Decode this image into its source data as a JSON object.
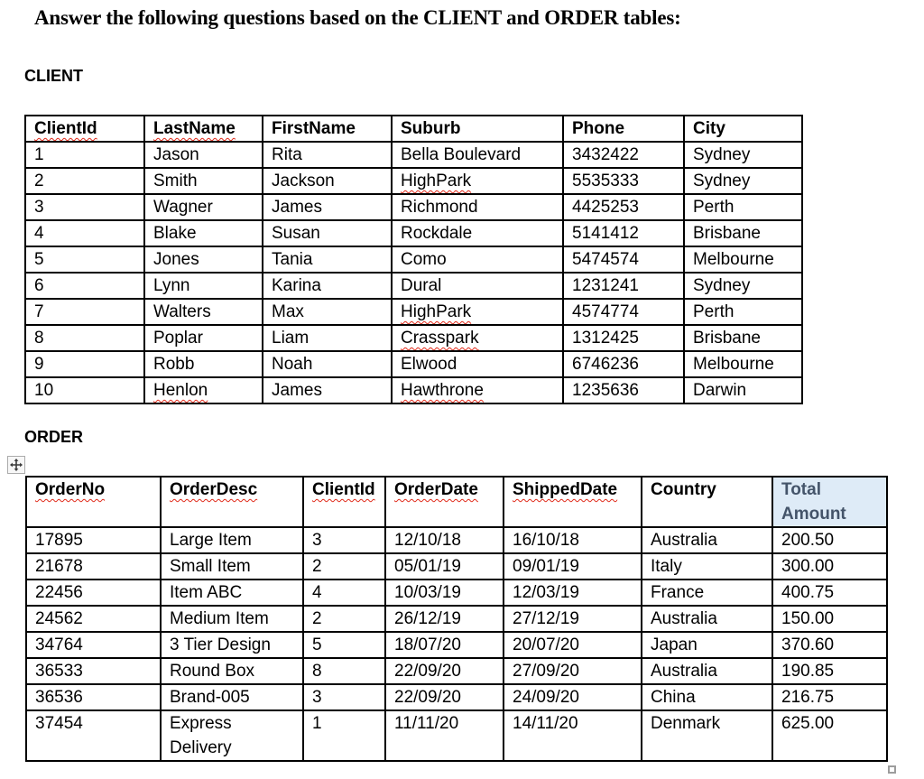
{
  "title": "Answer the following questions based on the CLIENT and ORDER tables:",
  "client_table": {
    "label": "CLIENT",
    "headers": [
      "ClientId",
      "LastName",
      "FirstName",
      "Suburb",
      "Phone",
      "City"
    ],
    "header_misspelled": [
      true,
      true,
      false,
      false,
      false,
      false
    ],
    "rows": [
      [
        "1",
        "Jason",
        "Rita",
        "Bella Boulevard",
        "3432422",
        "Sydney"
      ],
      [
        "2",
        "Smith",
        "Jackson",
        "HighPark",
        "5535333",
        "Sydney"
      ],
      [
        "3",
        "Wagner",
        "James",
        "Richmond",
        "4425253",
        "Perth"
      ],
      [
        "4",
        "Blake",
        "Susan",
        "Rockdale",
        "5141412",
        "Brisbane"
      ],
      [
        "5",
        "Jones",
        "Tania",
        "Como",
        "5474574",
        "Melbourne"
      ],
      [
        "6",
        "Lynn",
        "Karina",
        "Dural",
        "1231241",
        "Sydney"
      ],
      [
        "7",
        "Walters",
        "Max",
        "HighPark",
        "4574774",
        "Perth"
      ],
      [
        "8",
        "Poplar",
        "Liam",
        "Crasspark",
        "1312425",
        "Brisbane"
      ],
      [
        "9",
        "Robb",
        "Noah",
        "Elwood",
        "6746236",
        "Melbourne"
      ],
      [
        "10",
        "Henlon",
        "James",
        "Hawthrone",
        "1235636",
        "Darwin"
      ]
    ],
    "misspelled_cells": [
      [
        1,
        3
      ],
      [
        6,
        3
      ],
      [
        7,
        3
      ],
      [
        9,
        1
      ],
      [
        9,
        3
      ]
    ]
  },
  "order_table": {
    "label": "ORDER",
    "headers": [
      "OrderNo",
      "OrderDesc",
      "ClientId",
      "OrderDate",
      "ShippedDate",
      "Country",
      "Total Amount"
    ],
    "header_misspelled": [
      true,
      true,
      true,
      true,
      true,
      false,
      false
    ],
    "highlighted_header_index": 6,
    "rows": [
      [
        "17895",
        "Large Item",
        "3",
        "12/10/18",
        "16/10/18",
        "Australia",
        "200.50"
      ],
      [
        "21678",
        "Small Item",
        "2",
        "05/01/19",
        "09/01/19",
        "Italy",
        "300.00"
      ],
      [
        "22456",
        "Item ABC",
        "4",
        "10/03/19",
        "12/03/19",
        "France",
        "400.75"
      ],
      [
        "24562",
        "Medium Item",
        "2",
        "26/12/19",
        "27/12/19",
        "Australia",
        "150.00"
      ],
      [
        "34764",
        "3 Tier Design",
        "5",
        "18/07/20",
        "20/07/20",
        "Japan",
        "370.60"
      ],
      [
        "36533",
        "Round Box",
        "8",
        "22/09/20",
        "27/09/20",
        "Australia",
        "190.85"
      ],
      [
        "36536",
        "Brand-005",
        "3",
        "22/09/20",
        "24/09/20",
        "China",
        "216.75"
      ],
      [
        "37454",
        "Express\nDelivery",
        "1",
        "11/11/20",
        "14/11/20",
        "Denmark",
        "625.00"
      ]
    ],
    "misspelled_cells": []
  },
  "icons": {
    "move_handle": "table-move-handle-icon",
    "resize_handle": "table-resize-handle"
  },
  "colors": {
    "highlight_bg": "#deebf7",
    "highlight_text": "#44546a",
    "squiggle_red": "#e02a1a",
    "table_border": "#000000"
  }
}
